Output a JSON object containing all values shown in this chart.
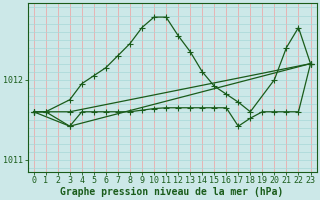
{
  "xlabel": "Graphe pression niveau de la mer (hPa)",
  "ylabel": "",
  "bg_color": "#cce8e8",
  "grid_color_v": "#f0a0a0",
  "grid_color_h": "#a8d8d8",
  "line_color": "#1a5c1a",
  "ylim": [
    1010.85,
    1012.95
  ],
  "xlim": [
    -0.5,
    23.5
  ],
  "yticks": [
    1011,
    1012
  ],
  "xticks": [
    0,
    1,
    2,
    3,
    4,
    5,
    6,
    7,
    8,
    9,
    10,
    11,
    12,
    13,
    14,
    15,
    16,
    17,
    18,
    19,
    20,
    21,
    22,
    23
  ],
  "series": [
    {
      "x": [
        0,
        1,
        3,
        4,
        5,
        6,
        7,
        8,
        9,
        10,
        11,
        12,
        13,
        14,
        15,
        16,
        17,
        18,
        20,
        21,
        22,
        23
      ],
      "y": [
        1011.6,
        1011.6,
        1011.75,
        1011.95,
        1012.05,
        1012.15,
        1012.3,
        1012.45,
        1012.65,
        1012.78,
        1012.78,
        1012.55,
        1012.35,
        1012.1,
        1011.92,
        1011.82,
        1011.72,
        1011.6,
        1012.0,
        1012.4,
        1012.65,
        1012.2
      ]
    },
    {
      "x": [
        0,
        1,
        3,
        4,
        5,
        6,
        7,
        8,
        9,
        10,
        11,
        12,
        13,
        14,
        15,
        16,
        17,
        18,
        19,
        20,
        21,
        22,
        23
      ],
      "y": [
        1011.6,
        1011.6,
        1011.42,
        1011.6,
        1011.6,
        1011.6,
        1011.6,
        1011.6,
        1011.62,
        1011.64,
        1011.65,
        1011.65,
        1011.65,
        1011.65,
        1011.65,
        1011.65,
        1011.42,
        1011.52,
        1011.6,
        1011.6,
        1011.6,
        1011.6,
        1012.2
      ]
    },
    {
      "x": [
        0,
        3,
        23
      ],
      "y": [
        1011.6,
        1011.42,
        1012.2
      ]
    },
    {
      "x": [
        0,
        3,
        23
      ],
      "y": [
        1011.6,
        1011.6,
        1012.2
      ]
    }
  ],
  "tick_fontsize": 6.0,
  "xlabel_fontsize": 7.0,
  "marker": "+",
  "markersize": 4,
  "linewidth": 0.9
}
